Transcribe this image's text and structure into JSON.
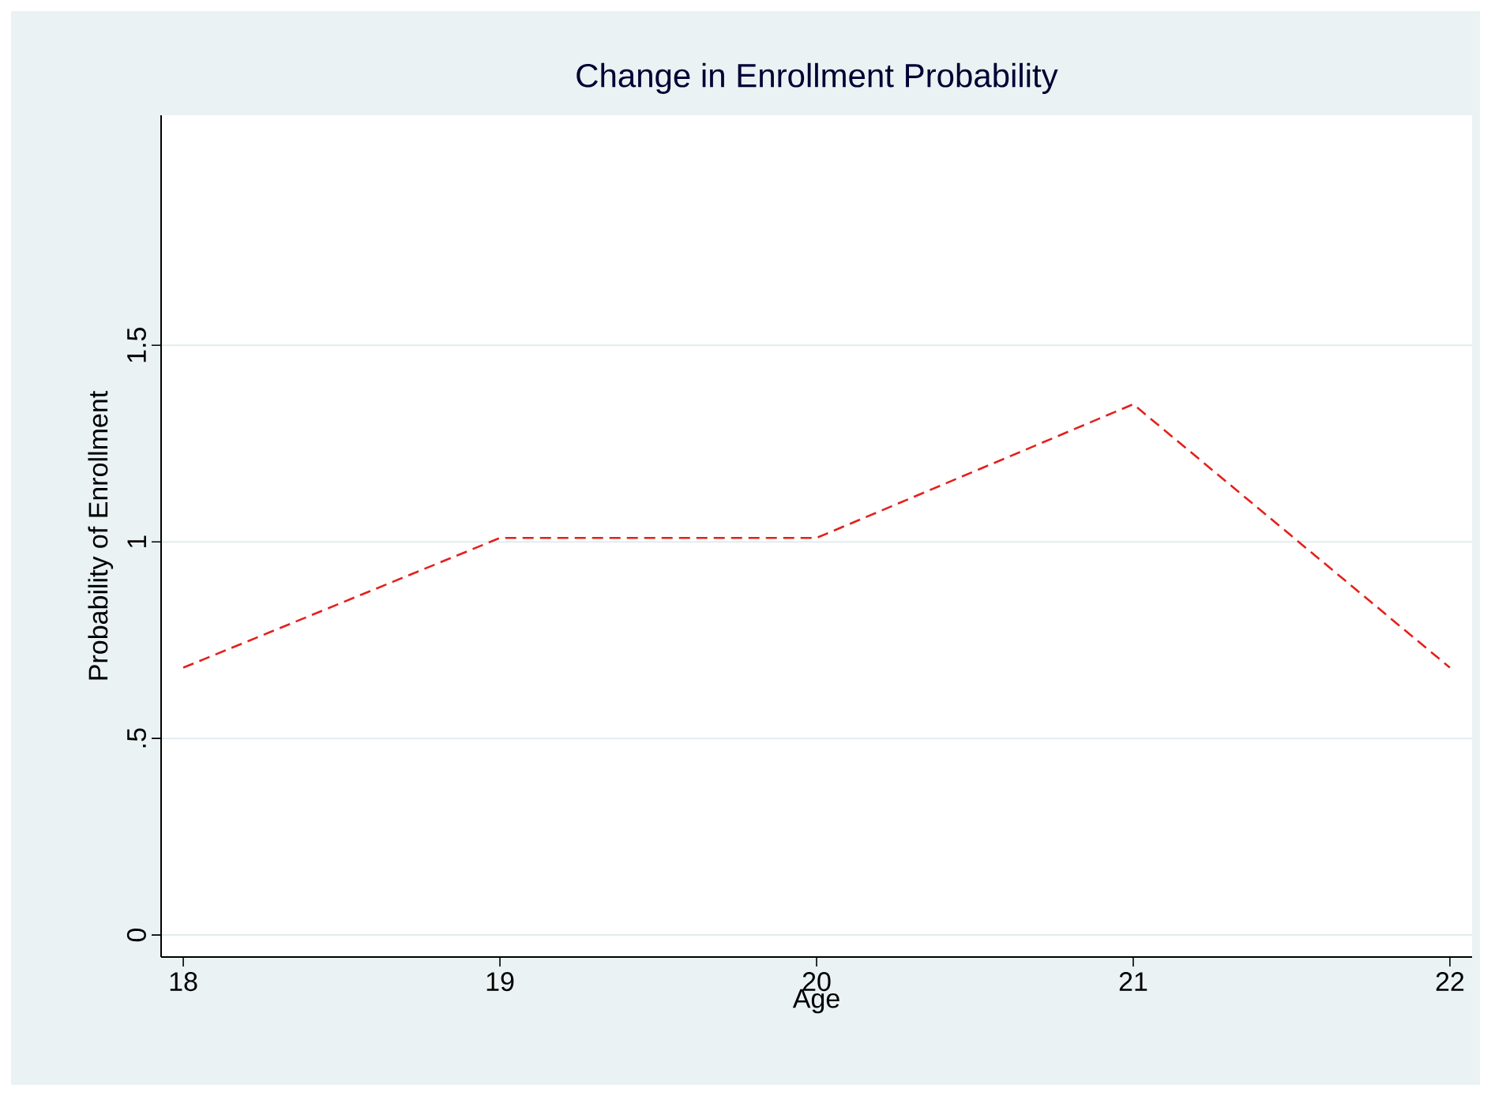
{
  "chart_data": {
    "type": "line",
    "title": "Change in Enrollment Probability",
    "xlabel": "Age",
    "ylabel": "Probability of Enrollment",
    "x": [
      18,
      19,
      20,
      21,
      22
    ],
    "series": [
      {
        "color": "#e3201b",
        "values": [
          0.68,
          1.01,
          1.01,
          1.35,
          0.68
        ]
      }
    ],
    "xlim": [
      17.93,
      22.07
    ],
    "ylim": [
      -0.056,
      2.085
    ],
    "xticks": [
      18,
      19,
      20,
      21,
      22
    ],
    "yticks": [
      0,
      {
        "value": 0.5,
        "label": ".5"
      },
      1,
      1.5
    ],
    "grid": "y",
    "line_style": "dashed",
    "marker": "none"
  }
}
